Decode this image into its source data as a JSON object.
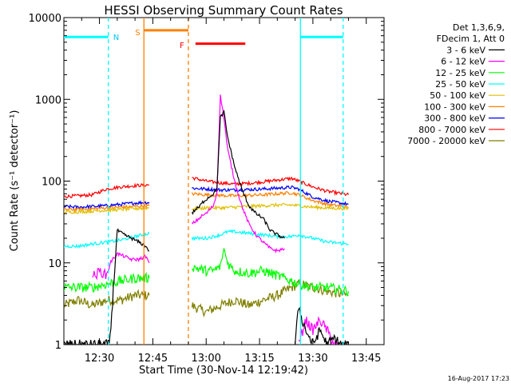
{
  "chart_data": {
    "type": "line",
    "title": "HESSI Observing Summary Count Rates",
    "xlabel": "Start Time (30-Nov-14 12:19:42)",
    "ylabel": "Count Rate (s⁻¹ detector⁻¹)",
    "y_scale": "log",
    "ylim": [
      1,
      10000
    ],
    "xlim_minutes_after_1220": [
      0,
      90
    ],
    "grid": false,
    "legend_placement": "right-outside",
    "x_tick_labels": [
      "12:30",
      "12:45",
      "13:00",
      "13:15",
      "13:30",
      "13:45"
    ],
    "y_tick_labels": [
      "1",
      "10",
      "100",
      "1000",
      "10000"
    ],
    "legend_header": [
      "Det 1,3,6,9,",
      "FDecim 1, Att 0"
    ],
    "footer": "16-Aug-2017 17:23",
    "series": [
      {
        "name": "3 - 6 keV",
        "color": "#000000",
        "segments": [
          {
            "t": [
              0,
              8,
              10,
              11,
              12,
              12.5,
              13,
              15,
              17,
              19,
              21,
              22,
              23,
              24
            ],
            "v": [
              1,
              1,
              1,
              1,
              1,
              1,
              1.2,
              25,
              22,
              20,
              18,
              17,
              16,
              14
            ]
          },
          {
            "t": [
              36,
              37,
              38,
              39,
              40,
              41,
              42,
              43,
              44,
              45,
              46,
              48,
              50,
              52,
              54,
              56,
              58,
              60,
              62
            ],
            "v": [
              40,
              45,
              48,
              55,
              60,
              65,
              70,
              80,
              600,
              700,
              350,
              150,
              80,
              50,
              40,
              35,
              25,
              22,
              20
            ]
          },
          {
            "t": [
              65,
              66,
              67,
              68,
              70,
              72,
              74,
              76,
              78,
              80
            ],
            "v": [
              1,
              3,
              2,
              1.5,
              1,
              1.5,
              1,
              1.2,
              1,
              1
            ]
          }
        ]
      },
      {
        "name": "6 - 12 keV",
        "color": "#ff00ff",
        "segments": [
          {
            "t": [
              8,
              9,
              10,
              11,
              12,
              13,
              15,
              17,
              19,
              21,
              23,
              24
            ],
            "v": [
              7,
              7,
              8,
              7.5,
              7,
              10,
              13,
              12,
              11,
              11,
              12,
              10
            ]
          },
          {
            "t": [
              36,
              37,
              38,
              39,
              40,
              41,
              42,
              43,
              44,
              45,
              46,
              48,
              50,
              52,
              54,
              56,
              58,
              60,
              62
            ],
            "v": [
              30,
              32,
              35,
              38,
              40,
              45,
              50,
              70,
              1100,
              600,
              250,
              100,
              50,
              30,
              22,
              18,
              15,
              14,
              15
            ]
          },
          {
            "t": [
              66,
              68,
              70,
              72,
              74,
              76,
              77
            ],
            "v": [
              1,
              2,
              1.5,
              2,
              1.5,
              1,
              1
            ]
          }
        ]
      },
      {
        "name": "12 - 25 keV",
        "color": "#00ff00",
        "segments": [
          {
            "t": [
              0,
              4,
              8,
              12,
              16,
              20,
              24
            ],
            "v": [
              5,
              5,
              5,
              5.5,
              6,
              6.5,
              6.5
            ]
          },
          {
            "t": [
              36,
              40,
              42,
              44,
              45,
              46,
              48,
              52,
              56,
              60,
              62,
              64,
              66,
              70,
              74,
              80
            ],
            "v": [
              9,
              8,
              8,
              9,
              15,
              10,
              8,
              7.5,
              8,
              7,
              6.5,
              6,
              5.5,
              5,
              5,
              4.5
            ]
          }
        ]
      },
      {
        "name": "25 - 50 keV",
        "color": "#00ffff",
        "segments": [
          {
            "t": [
              0,
              4,
              8,
              12,
              16,
              20,
              24
            ],
            "v": [
              16,
              16,
              17,
              18,
              19,
              21,
              23
            ]
          },
          {
            "t": [
              36,
              40,
              44,
              46,
              48,
              52,
              56,
              60,
              64,
              66,
              70,
              74,
              80
            ],
            "v": [
              20,
              20,
              22,
              24,
              24,
              23,
              22,
              21,
              21,
              22,
              20,
              18,
              17
            ]
          }
        ]
      },
      {
        "name": "50 - 100 keV",
        "color": "#dfbf00",
        "segments": [
          {
            "t": [
              0,
              4,
              8,
              12,
              16,
              20,
              24
            ],
            "v": [
              42,
              42,
              43,
              44,
              45,
              46,
              47
            ]
          },
          {
            "t": [
              36,
              40,
              44,
              48,
              52,
              56,
              60,
              64,
              66,
              70,
              74,
              80
            ],
            "v": [
              46,
              47,
              47,
              48,
              49,
              50,
              51,
              51,
              50,
              48,
              47,
              46
            ]
          }
        ]
      },
      {
        "name": "100 - 300 keV",
        "color": "#ff8000",
        "segments": [
          {
            "t": [
              0,
              4,
              8,
              12,
              16,
              20,
              24
            ],
            "v": [
              45,
              45,
              46,
              47,
              48,
              49,
              50
            ]
          },
          {
            "t": [
              36,
              40,
              44,
              48,
              52,
              56,
              60,
              64,
              66,
              70,
              74,
              80
            ],
            "v": [
              70,
              68,
              67,
              66,
              67,
              68,
              70,
              72,
              68,
              58,
              52,
              48
            ]
          }
        ]
      },
      {
        "name": "300 - 800 keV",
        "color": "#0000ff",
        "segments": [
          {
            "t": [
              0,
              4,
              8,
              12,
              16,
              20,
              24
            ],
            "v": [
              49,
              48,
              49,
              50,
              52,
              54,
              55
            ]
          },
          {
            "t": [
              36,
              40,
              44,
              48,
              52,
              56,
              60,
              64,
              66,
              70,
              74,
              80
            ],
            "v": [
              82,
              80,
              78,
              78,
              79,
              80,
              82,
              84,
              80,
              64,
              57,
              52
            ]
          }
        ]
      },
      {
        "name": "800 - 7000 keV",
        "color": "#ff0000",
        "segments": [
          {
            "t": [
              0,
              4,
              8,
              12,
              16,
              20,
              24
            ],
            "v": [
              65,
              66,
              68,
              80,
              85,
              88,
              90
            ]
          },
          {
            "t": [
              36,
              40,
              44,
              48,
              52,
              56,
              60,
              64,
              66,
              70,
              74,
              80
            ],
            "v": [
              110,
              100,
              95,
              92,
              94,
              98,
              103,
              108,
              100,
              85,
              75,
              68
            ]
          }
        ]
      },
      {
        "name": "7000 - 20000 keV",
        "color": "#808000",
        "segments": [
          {
            "t": [
              0,
              4,
              8,
              12,
              16,
              20,
              24
            ],
            "v": [
              3,
              3.5,
              3,
              3.5,
              3.5,
              4,
              4
            ]
          },
          {
            "t": [
              36,
              40,
              44,
              48,
              52,
              56,
              60,
              64,
              66,
              70,
              74,
              80
            ],
            "v": [
              3,
              2.5,
              3,
              3.5,
              3,
              3.5,
              4,
              5,
              5.5,
              5,
              4.5,
              4
            ]
          }
        ]
      }
    ],
    "annotations": [
      {
        "label": "N",
        "color": "#00c8ff",
        "t": 12.5
      },
      {
        "label": "S",
        "color": "#ff8000",
        "t": 22.5
      },
      {
        "label": "F",
        "color": "#ff0000",
        "t": 35
      }
    ],
    "night_bars": [
      {
        "color": "#00ffff",
        "t_start": 0,
        "t_end": 12.5,
        "value": 5800
      },
      {
        "color": "#00ffff",
        "t_start": 66.5,
        "t_end": 78.5,
        "value": 5800
      }
    ],
    "saa_bar": {
      "color": "#ff8000",
      "t_start": 22.5,
      "t_end": 35,
      "value": 7000
    },
    "flare_bar": {
      "color": "#ff0000",
      "t_start": 37,
      "t_end": 51,
      "value": 4800
    },
    "vertical_lines": [
      {
        "t": 12.5,
        "color": "#00ffff",
        "style": "dashed"
      },
      {
        "t": 22.5,
        "color": "#ff8000",
        "style": "solid"
      },
      {
        "t": 35,
        "color": "#ff8000",
        "style": "dashed"
      },
      {
        "t": 66.5,
        "color": "#00ffff",
        "style": "solid"
      },
      {
        "t": 78.5,
        "color": "#00ffff",
        "style": "dashed"
      }
    ]
  }
}
